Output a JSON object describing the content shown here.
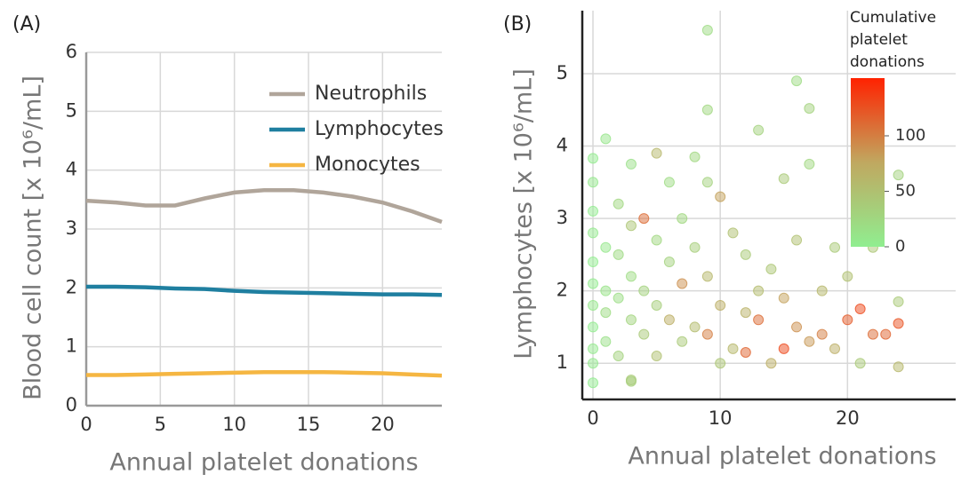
{
  "chart_data": [
    {
      "type": "line",
      "panel_label": "(A)",
      "xlabel": "Annual platelet donations",
      "ylabel": "Blood cell count [x 10⁶/mL]",
      "x": [
        0,
        2,
        4,
        6,
        8,
        10,
        12,
        14,
        16,
        18,
        20,
        22,
        24
      ],
      "series": [
        {
          "name": "Neutrophils",
          "color": "#b0a59a",
          "values": [
            3.48,
            3.45,
            3.4,
            3.4,
            3.52,
            3.62,
            3.66,
            3.66,
            3.62,
            3.55,
            3.45,
            3.3,
            3.12
          ]
        },
        {
          "name": "Lymphocytes",
          "color": "#1f7fa0",
          "values": [
            2.02,
            2.02,
            2.01,
            1.99,
            1.98,
            1.95,
            1.93,
            1.92,
            1.91,
            1.9,
            1.89,
            1.89,
            1.88
          ]
        },
        {
          "name": "Monocytes",
          "color": "#f5b642",
          "values": [
            0.52,
            0.52,
            0.53,
            0.54,
            0.55,
            0.56,
            0.57,
            0.57,
            0.57,
            0.56,
            0.55,
            0.53,
            0.51
          ]
        }
      ],
      "xlim": [
        0,
        24
      ],
      "ylim": [
        0,
        6
      ],
      "xticks": [
        0,
        5,
        10,
        15,
        20
      ],
      "yticks": [
        0,
        1,
        2,
        3,
        4,
        5,
        6
      ],
      "grid": true,
      "legend": "upper right"
    },
    {
      "type": "scatter",
      "panel_label": "(B)",
      "xlabel": "Annual platelet donations",
      "ylabel": "Lymphocytes [x 10⁶/mL]",
      "colorbar_label": [
        "Cumulative",
        "platelet",
        "donations"
      ],
      "colormap": [
        "#90ee90",
        "#c0a860",
        "#ff2200"
      ],
      "clim": [
        0,
        152
      ],
      "cticks": [
        0,
        50,
        100
      ],
      "x": [
        0,
        0,
        0,
        0,
        0,
        0,
        0,
        0,
        0,
        0,
        0,
        1,
        1,
        1,
        1,
        1,
        2,
        2,
        2,
        2,
        3,
        3,
        3,
        3,
        3,
        3,
        4,
        4,
        4,
        5,
        5,
        5,
        5,
        6,
        6,
        6,
        7,
        7,
        7,
        8,
        8,
        8,
        9,
        9,
        9,
        9,
        9,
        10,
        10,
        10,
        11,
        11,
        12,
        12,
        12,
        13,
        13,
        13,
        14,
        14,
        15,
        15,
        15,
        16,
        16,
        16,
        17,
        17,
        17,
        18,
        18,
        19,
        19,
        20,
        20,
        21,
        21,
        22,
        22,
        23,
        24,
        24,
        24,
        24
      ],
      "y": [
        1.2,
        1.5,
        1.8,
        2.1,
        2.4,
        2.8,
        3.1,
        3.5,
        3.83,
        0.73,
        1.0,
        4.1,
        1.3,
        2.0,
        2.6,
        1.7,
        1.1,
        1.9,
        2.5,
        3.2,
        0.77,
        0.75,
        1.6,
        2.2,
        3.75,
        2.9,
        3.0,
        1.4,
        2.0,
        3.9,
        1.1,
        1.8,
        2.7,
        1.6,
        2.4,
        3.5,
        2.1,
        1.3,
        3.0,
        3.85,
        1.5,
        2.6,
        5.6,
        4.5,
        1.4,
        2.2,
        3.5,
        1.0,
        3.3,
        1.8,
        2.8,
        1.2,
        1.15,
        2.5,
        1.7,
        4.22,
        1.6,
        2.0,
        1.0,
        2.3,
        3.55,
        1.2,
        1.9,
        4.9,
        2.7,
        1.5,
        4.52,
        3.75,
        1.3,
        2.0,
        1.4,
        2.6,
        1.2,
        1.6,
        2.2,
        1.75,
        1.0,
        2.6,
        1.4,
        1.4,
        3.6,
        1.55,
        0.95,
        1.85
      ],
      "c": [
        5,
        2,
        8,
        3,
        1,
        4,
        2,
        6,
        3,
        2,
        5,
        10,
        15,
        12,
        8,
        20,
        30,
        18,
        22,
        25,
        40,
        35,
        28,
        20,
        15,
        45,
        110,
        40,
        30,
        60,
        50,
        35,
        25,
        70,
        30,
        20,
        90,
        40,
        25,
        25,
        55,
        35,
        20,
        25,
        100,
        60,
        30,
        45,
        80,
        70,
        50,
        60,
        115,
        40,
        65,
        30,
        110,
        55,
        70,
        45,
        40,
        130,
        80,
        20,
        50,
        90,
        30,
        25,
        85,
        60,
        100,
        40,
        70,
        120,
        50,
        130,
        40,
        45,
        110,
        115,
        30,
        125,
        60,
        40
      ],
      "xlim": [
        -0.84,
        28.5
      ],
      "ylim": [
        0.5,
        5.87
      ],
      "xticks": [
        0,
        10,
        20
      ],
      "yticks": [
        1,
        2,
        3,
        4,
        5
      ],
      "grid": true
    }
  ]
}
